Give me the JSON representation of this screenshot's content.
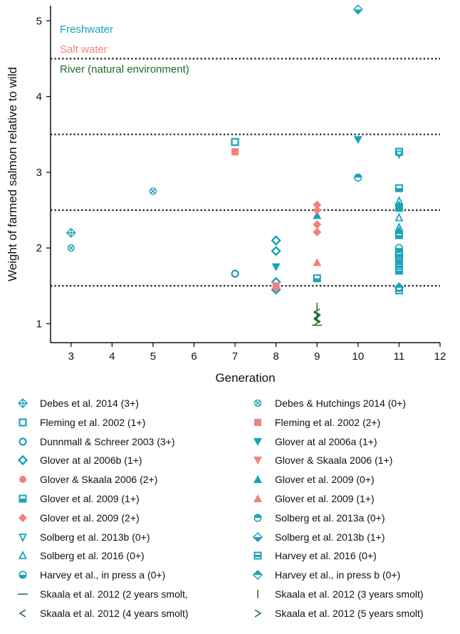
{
  "chart_data": {
    "type": "scatter",
    "title": "",
    "xlabel": "Generation",
    "ylabel": "Weight of farmed salmon relative to wild",
    "xlim": [
      2.5,
      12
    ],
    "ylim": [
      0.75,
      5.2
    ],
    "xticks": [
      3,
      4,
      5,
      6,
      7,
      8,
      9,
      10,
      11,
      12
    ],
    "yticks": [
      1,
      2,
      3,
      4,
      5
    ],
    "reference_lines": [
      1.5,
      2.5,
      3.5,
      4.5
    ],
    "environments": [
      {
        "label": "Freshwater",
        "color": "#1aa3b8"
      },
      {
        "label": "Salt water",
        "color": "#f28080"
      },
      {
        "label": "River (natural environment)",
        "color": "#1f6b2a"
      }
    ],
    "series": [
      {
        "name": "Debes et al. 2014 (3+)",
        "marker": "crossed-diamond",
        "color": "#1aa3b8",
        "points": [
          [
            3,
            2.2
          ]
        ]
      },
      {
        "name": "Debes & Hutchings 2014 (0+)",
        "marker": "circle-x",
        "color": "#1aa3b8",
        "points": [
          [
            3,
            2.0
          ],
          [
            5,
            2.75
          ]
        ]
      },
      {
        "name": "Fleming et al. 2002 (1+)",
        "marker": "square-open",
        "color": "#1aa3b8",
        "points": [
          [
            7,
            3.4
          ],
          [
            11,
            3.27
          ],
          [
            11,
            1.93
          ],
          [
            11,
            1.87
          ]
        ]
      },
      {
        "name": "Fleming et al. 2002 (2+)",
        "marker": "square-filled",
        "color": "#f28080",
        "points": [
          [
            7,
            3.27
          ],
          [
            8,
            1.47
          ]
        ]
      },
      {
        "name": "Dunnmall & Schreer 2003 (3+)",
        "marker": "circle-open",
        "color": "#1aa3b8",
        "points": [
          [
            7,
            1.66
          ]
        ]
      },
      {
        "name": "Glover at al 2006a (1+)",
        "marker": "triangle-down",
        "color": "#1aa3b8",
        "points": [
          [
            8,
            1.75
          ],
          [
            10,
            3.43
          ]
        ]
      },
      {
        "name": "Glover at al 2006b (1+)",
        "marker": "diamond-open",
        "color": "#1aa3b8",
        "points": [
          [
            8,
            2.1
          ],
          [
            8,
            1.96
          ],
          [
            8,
            1.55
          ],
          [
            8,
            1.45
          ]
        ]
      },
      {
        "name": "Glover & Skaala 2006 (1+)",
        "marker": "triangle-down",
        "color": "#f28080",
        "points": [
          [
            8,
            1.5
          ]
        ]
      },
      {
        "name": "Glover & Skaala 2006 (2+)",
        "marker": "circle-filled",
        "color": "#f28080",
        "points": [
          [
            8,
            1.48
          ]
        ]
      },
      {
        "name": "Glover et al. 2009 (0+)",
        "marker": "triangle-up",
        "color": "#1aa3b8",
        "points": [
          [
            9,
            2.43
          ],
          [
            11,
            2.57
          ],
          [
            11,
            2.23
          ]
        ]
      },
      {
        "name": "Glover et al. 2009 (1+)",
        "marker": "square-half",
        "color": "#1aa3b8",
        "points": [
          [
            9,
            1.6
          ],
          [
            11,
            2.79
          ],
          [
            11,
            2.53
          ],
          [
            11,
            2.17
          ],
          [
            11,
            1.7
          ]
        ]
      },
      {
        "name": "Glover et al. 2009 (1+)",
        "marker": "triangle-up-filled",
        "color": "#f28080",
        "points": [
          [
            9,
            1.81
          ]
        ]
      },
      {
        "name": "Glover et al. 2009 (2+)",
        "marker": "diamond-filled",
        "color": "#f28080",
        "points": [
          [
            9,
            2.57
          ],
          [
            9,
            2.5
          ],
          [
            9,
            2.31
          ],
          [
            9,
            2.21
          ]
        ]
      },
      {
        "name": "Solberg et al. 2013a (0+)",
        "marker": "circle-half",
        "color": "#1aa3b8",
        "points": [
          [
            10,
            2.93
          ]
        ]
      },
      {
        "name": "Solberg et al. 2013b (0+)",
        "marker": "triangle-down-small",
        "color": "#1aa3b8",
        "points": [
          [
            11,
            3.24
          ]
        ]
      },
      {
        "name": "Solberg et al. 2013b (1+)",
        "marker": "diamond-half",
        "color": "#1aa3b8",
        "points": [
          [
            10,
            5.15
          ]
        ]
      },
      {
        "name": "Solberg et al. 2016 (0+)",
        "marker": "triangle-up-small",
        "color": "#1aa3b8",
        "points": [
          [
            11,
            2.62
          ],
          [
            11,
            2.4
          ],
          [
            11,
            2.27
          ],
          [
            11,
            1.82
          ]
        ]
      },
      {
        "name": "Harvey et al. 2016 (0+)",
        "marker": "square-half-filled",
        "color": "#1aa3b8",
        "points": [
          [
            11,
            1.9
          ],
          [
            11,
            1.76
          ],
          [
            11,
            1.44
          ]
        ]
      },
      {
        "name": "Harvey et al., in press a (0+)",
        "marker": "circle-bottom-half",
        "color": "#1aa3b8",
        "points": [
          [
            11,
            2.0
          ],
          [
            11,
            1.84
          ]
        ]
      },
      {
        "name": "Harvey et al., in press b (0+)",
        "marker": "diamond-bottom-half",
        "color": "#1aa3b8",
        "points": [
          [
            11,
            1.48
          ]
        ]
      },
      {
        "name": "Skaala et al. 2012 (2 years smolt,",
        "marker": "hline",
        "color": "#1f6b2a",
        "points": [
          [
            9,
            0.98
          ]
        ]
      },
      {
        "name": "Skaala et al. 2012 (3 years smolt)",
        "marker": "vline",
        "color": "#1f6b2a",
        "points": [
          [
            9,
            1.22
          ],
          [
            9,
            1.08
          ]
        ]
      },
      {
        "name": "Skaala et al. 2012 (4 years smolt)",
        "marker": "less-than",
        "color": "#1f6b2a",
        "points": [
          [
            9,
            1.15
          ],
          [
            9,
            1.06
          ]
        ]
      },
      {
        "name": "Skaala et al. 2012 (5 years smolt)",
        "marker": "greater-than",
        "color": "#1f6b2a",
        "points": [
          [
            9,
            1.12
          ],
          [
            9,
            1.03
          ]
        ]
      }
    ]
  }
}
